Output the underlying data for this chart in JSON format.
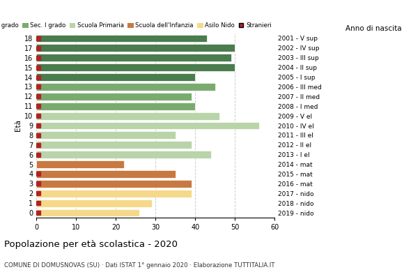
{
  "ages": [
    18,
    17,
    16,
    15,
    14,
    13,
    12,
    11,
    10,
    9,
    8,
    7,
    6,
    5,
    4,
    3,
    2,
    1,
    0
  ],
  "values": [
    43,
    50,
    49,
    50,
    40,
    45,
    39,
    40,
    46,
    56,
    35,
    39,
    44,
    22,
    35,
    39,
    39,
    29,
    26
  ],
  "stranieri": [
    1,
    1,
    1,
    1,
    1,
    1,
    1,
    1,
    1,
    1,
    1,
    1,
    1,
    0,
    1,
    1,
    1,
    1,
    1
  ],
  "bar_colors": [
    "#4a7c4e",
    "#4a7c4e",
    "#4a7c4e",
    "#4a7c4e",
    "#4a7c4e",
    "#7aab6e",
    "#7aab6e",
    "#7aab6e",
    "#b8d4a8",
    "#b8d4a8",
    "#b8d4a8",
    "#b8d4a8",
    "#b8d4a8",
    "#c87941",
    "#c87941",
    "#c87941",
    "#f5d98b",
    "#f5d98b",
    "#f5d98b"
  ],
  "anno_labels": [
    "2001 - V sup",
    "2002 - IV sup",
    "2003 - III sup",
    "2004 - II sup",
    "2005 - I sup",
    "2006 - III med",
    "2007 - II med",
    "2008 - I med",
    "2009 - V el",
    "2010 - IV el",
    "2011 - III el",
    "2012 - II el",
    "2013 - I el",
    "2014 - mat",
    "2015 - mat",
    "2016 - mat",
    "2017 - nido",
    "2018 - nido",
    "2019 - nido"
  ],
  "legend_labels": [
    "Sec. II grado",
    "Sec. I grado",
    "Scuola Primaria",
    "Scuola dell'Infanzia",
    "Asilo Nido",
    "Stranieri"
  ],
  "legend_colors": [
    "#4a7c4e",
    "#7aab6e",
    "#b8d4a8",
    "#c87941",
    "#f5d98b",
    "#b22222"
  ],
  "ylabel": "Età",
  "right_label": "Anno di nascita",
  "title": "Popolazione per età scolastica - 2020",
  "subtitle": "COMUNE DI DOMUSNOVAS (SU) · Dati ISTAT 1° gennaio 2020 · Elaborazione TUTTITALIA.IT",
  "xlim": [
    0,
    60
  ],
  "xticks": [
    0,
    10,
    20,
    30,
    40,
    50,
    60
  ],
  "stranieri_color": "#b22222",
  "stranieri_size": 4,
  "grid_color": "#cccccc",
  "bg_color": "#ffffff"
}
